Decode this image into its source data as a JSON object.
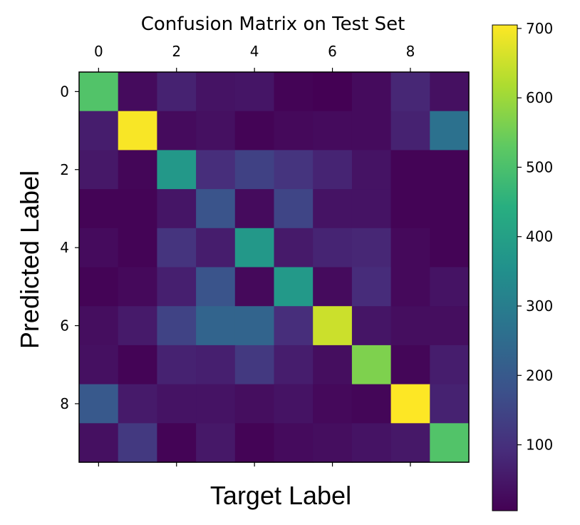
{
  "chart_data": {
    "type": "heatmap",
    "title": "Confusion Matrix on Test Set",
    "xlabel": "Target Label",
    "ylabel": "Predicted Label",
    "x_ticks": [
      "0",
      "2",
      "4",
      "6",
      "8"
    ],
    "y_ticks": [
      "0",
      "2",
      "4",
      "6",
      "8"
    ],
    "x_ticks_position": "top",
    "colormap": "viridis",
    "colorbar": {
      "ticks": [
        "100",
        "200",
        "300",
        "400",
        "500",
        "600",
        "700"
      ],
      "range": [
        5,
        705
      ]
    },
    "grid": false,
    "x_categories": [
      "0",
      "1",
      "2",
      "3",
      "4",
      "5",
      "6",
      "7",
      "8",
      "9"
    ],
    "y_categories": [
      "0",
      "1",
      "2",
      "3",
      "4",
      "5",
      "6",
      "7",
      "8",
      "9"
    ],
    "matrix": [
      [
        510,
        25,
        70,
        40,
        45,
        10,
        5,
        25,
        80,
        35
      ],
      [
        60,
        700,
        25,
        35,
        10,
        20,
        25,
        25,
        70,
        265
      ],
      [
        50,
        15,
        375,
        95,
        140,
        110,
        75,
        40,
        10,
        10
      ],
      [
        10,
        10,
        45,
        185,
        25,
        150,
        40,
        40,
        10,
        10
      ],
      [
        25,
        10,
        110,
        60,
        375,
        55,
        75,
        80,
        20,
        10
      ],
      [
        10,
        20,
        65,
        185,
        20,
        380,
        25,
        90,
        20,
        40
      ],
      [
        30,
        55,
        145,
        230,
        230,
        95,
        650,
        45,
        30,
        30
      ],
      [
        35,
        10,
        70,
        65,
        120,
        60,
        30,
        565,
        15,
        60
      ],
      [
        200,
        55,
        40,
        40,
        30,
        40,
        20,
        15,
        705,
        70
      ],
      [
        35,
        120,
        10,
        50,
        10,
        25,
        30,
        40,
        50,
        510
      ]
    ]
  }
}
